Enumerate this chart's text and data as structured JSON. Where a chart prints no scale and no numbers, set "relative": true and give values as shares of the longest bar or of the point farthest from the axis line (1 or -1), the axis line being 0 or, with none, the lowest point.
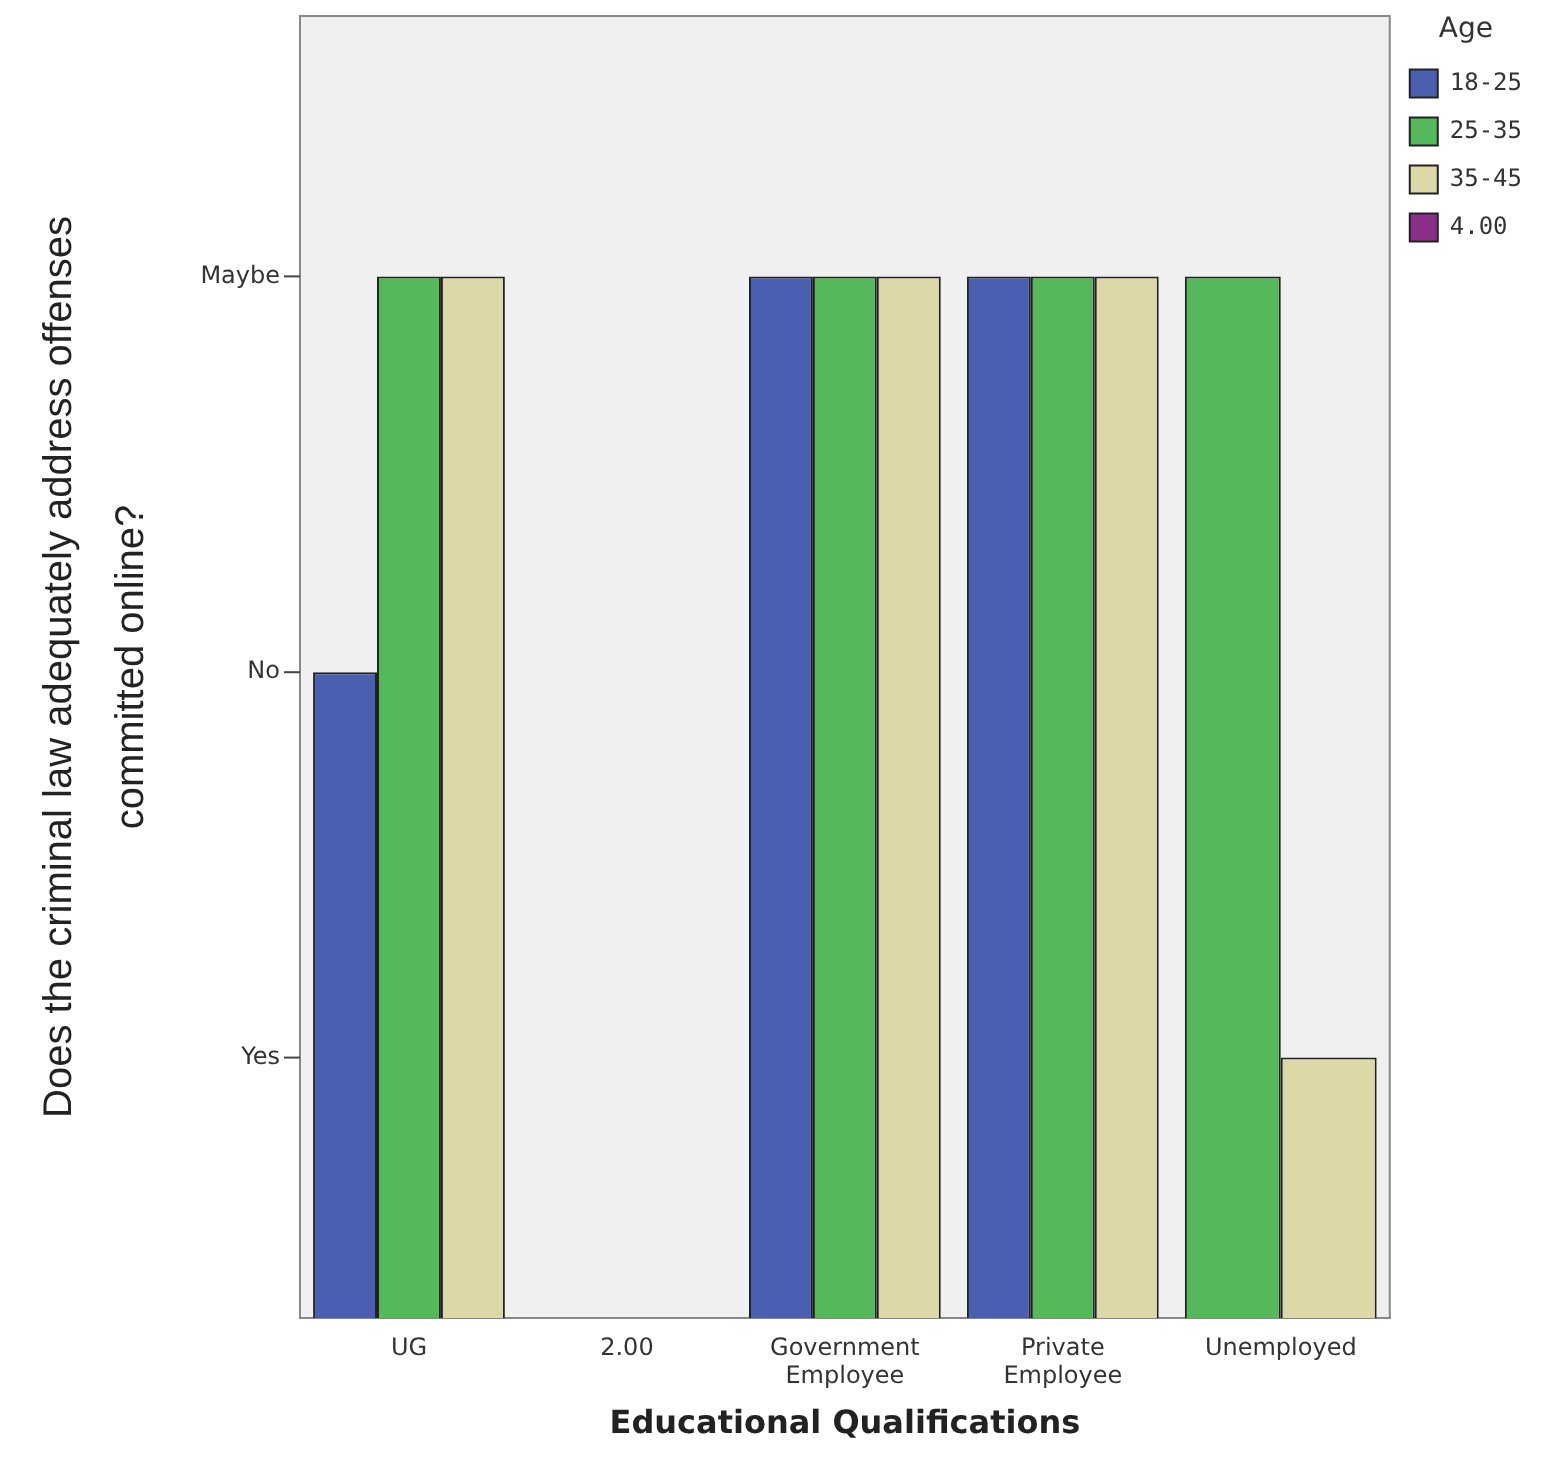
{
  "chart_data": {
    "type": "bar",
    "relative": true,
    "xlabel": "Educational Qualifications",
    "ylabel": "Does the criminal law adequately address offenses committed online?",
    "legend_title": "Age",
    "legend": "top right",
    "grid": false,
    "categories": [
      "UG",
      "2.00",
      "Government Employee",
      "Private Employee",
      "Unemployed"
    ],
    "annotations": [
      "Yes",
      "No",
      "Maybe"
    ],
    "series": [
      {
        "name": "18-25",
        "color": "#4a5fb0",
        "values": [
          0.62,
          null,
          1,
          1,
          null
        ]
      },
      {
        "name": "25-35",
        "color": "#55b85a",
        "values": [
          1,
          null,
          1,
          1,
          1
        ]
      },
      {
        "name": "35-45",
        "color": "#dcd8a8",
        "values": [
          1,
          null,
          1,
          1,
          0.25
        ]
      },
      {
        "name": "4.00",
        "color": "#8b2f8b",
        "values": [
          null,
          null,
          null,
          null,
          null
        ]
      }
    ]
  }
}
